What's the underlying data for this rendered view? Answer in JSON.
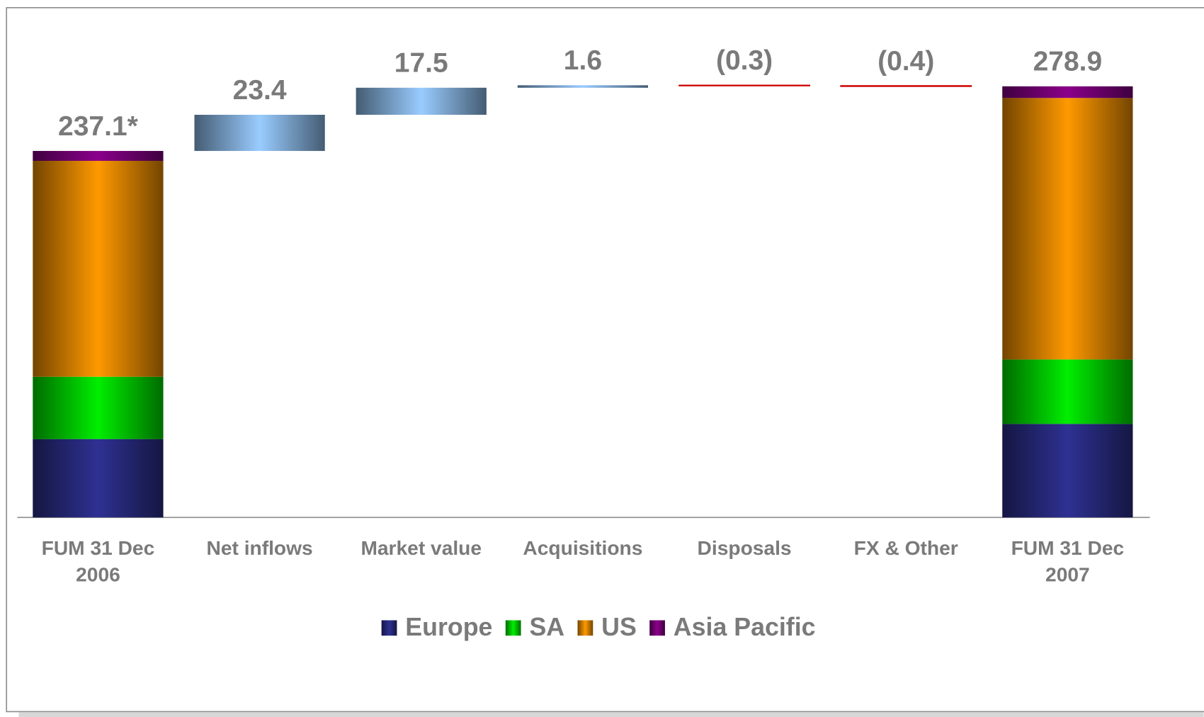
{
  "chart_data": {
    "type": "waterfall",
    "categories": [
      "FUM 31 Dec 2006",
      "Net inflows",
      "Market value",
      "Acquisitions",
      "Disposals",
      "FX & Other",
      "FUM 31 Dec 2007"
    ],
    "values": [
      237.1,
      23.4,
      17.5,
      1.6,
      -0.3,
      -0.4,
      278.9
    ],
    "value_labels": [
      "237.1*",
      "23.4",
      "17.5",
      "1.6",
      "(0.3)",
      "(0.4)",
      "278.9"
    ],
    "is_total": [
      true,
      false,
      false,
      false,
      false,
      false,
      true
    ],
    "series": [
      {
        "name": "Europe",
        "color": "#2e3192",
        "values": [
          50.7,
          null,
          null,
          null,
          null,
          null,
          60.5
        ]
      },
      {
        "name": "SA",
        "color": "#00ee00",
        "values": [
          40.3,
          null,
          null,
          null,
          null,
          null,
          41.7
        ]
      },
      {
        "name": "US",
        "color": "#ff9900",
        "values": [
          139.7,
          null,
          null,
          null,
          null,
          null,
          169.2
        ]
      },
      {
        "name": "Asia Pacific",
        "color": "#8b008b",
        "values": [
          6.4,
          null,
          null,
          null,
          null,
          null,
          7.5
        ]
      }
    ],
    "up_color": "#99ccff",
    "down_color": "#cc0000",
    "ylim": [
      0,
      300
    ],
    "legend": "bottom"
  }
}
